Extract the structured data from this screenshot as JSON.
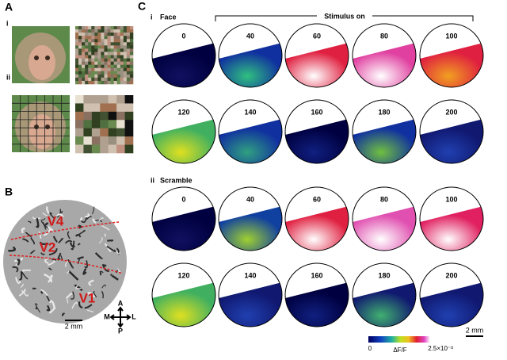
{
  "panel_a": {
    "label": "A",
    "rows": [
      {
        "label": "i"
      },
      {
        "label": "ii"
      }
    ]
  },
  "panel_b": {
    "label": "B",
    "areas": [
      "V4",
      "V2",
      "V1"
    ],
    "scale_bar": "2 mm",
    "compass": {
      "up": "A",
      "down": "P",
      "left": "M",
      "right": "L"
    }
  },
  "panel_c": {
    "label": "C",
    "stimulus_label": "Stimulus on",
    "conditions": [
      {
        "numeral": "i",
        "name": "Face",
        "frames": [
          "0",
          "40",
          "60",
          "80",
          "100",
          "120",
          "140",
          "160",
          "180",
          "200"
        ]
      },
      {
        "numeral": "ii",
        "name": "Scramble",
        "frames": [
          "0",
          "40",
          "60",
          "80",
          "100",
          "120",
          "140",
          "160",
          "180",
          "200"
        ]
      }
    ],
    "colorbar": {
      "min_label": "0",
      "title": "ΔF/F",
      "max_label": "2.5×10⁻³"
    },
    "scale_bar": "2 mm"
  }
}
